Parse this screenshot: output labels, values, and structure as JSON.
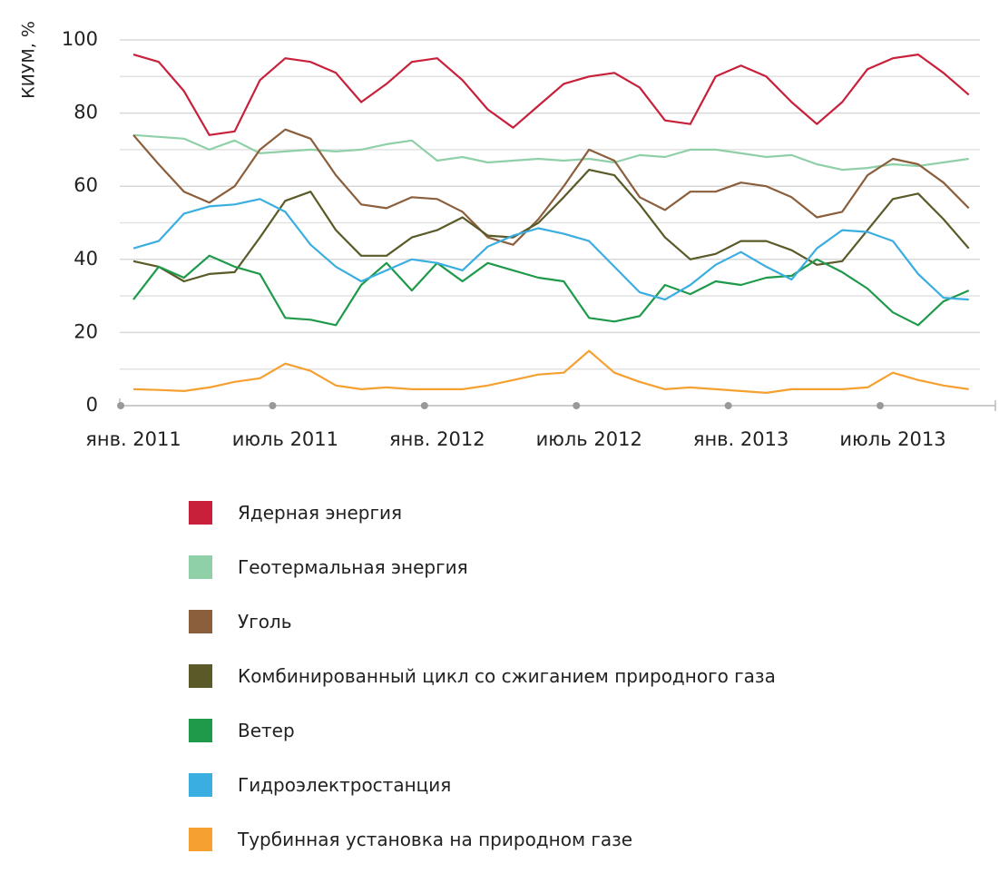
{
  "chart_data": {
    "type": "line",
    "y_label": "КИУМ, %",
    "categories": [
      "янв. 2011",
      null,
      null,
      null,
      null,
      null,
      "июль 2011",
      null,
      null,
      null,
      null,
      null,
      "янв. 2012",
      null,
      null,
      null,
      null,
      null,
      "июль 2012",
      null,
      null,
      null,
      null,
      null,
      "янв. 2013",
      null,
      null,
      null,
      null,
      null,
      "июль 2013",
      null,
      null,
      null
    ],
    "ylim": [
      0,
      100
    ],
    "yticks": [
      0,
      20,
      40,
      60,
      80,
      100
    ],
    "minor_yticks": [
      10,
      30,
      50,
      70,
      90
    ],
    "grid": true,
    "series": [
      {
        "name": "Ядерная энергия",
        "color": "#c8203a",
        "values": [
          96,
          94,
          86,
          74,
          75,
          89,
          95,
          94,
          91,
          83,
          88,
          94,
          95,
          89,
          81,
          76,
          82,
          88,
          90,
          91,
          87,
          78,
          77,
          90,
          93,
          90,
          83,
          77,
          83,
          92,
          95,
          96,
          91,
          85
        ]
      },
      {
        "name": "Геотермальная энергия",
        "color": "#8fd0a8",
        "values": [
          74,
          73.5,
          73,
          70,
          72.5,
          69,
          69.5,
          70,
          69.5,
          70,
          71.5,
          72.5,
          67,
          68,
          66.5,
          67,
          67.5,
          67,
          67.5,
          66.5,
          68.5,
          68,
          70,
          70,
          69,
          68,
          68.5,
          66,
          64.5,
          65,
          66,
          65.5,
          66.5,
          67.5
        ]
      },
      {
        "name": "Уголь",
        "color": "#8b5e3c",
        "values": [
          74,
          66,
          58.5,
          55.5,
          60,
          70,
          75.5,
          73,
          63,
          55,
          54,
          57,
          56.5,
          53,
          46,
          44,
          51,
          60,
          70,
          67,
          57,
          53.5,
          58.5,
          58.5,
          61,
          60,
          57,
          51.5,
          53,
          63,
          67.5,
          66,
          61,
          54
        ]
      },
      {
        "name": "Комбинированный цикл со сжиганием природного газа",
        "color": "#5a5a28",
        "values": [
          39.5,
          38,
          34,
          36,
          36.5,
          46,
          56,
          58.5,
          48,
          41,
          41,
          46,
          48,
          51.5,
          46.5,
          46,
          50,
          57,
          64.5,
          63,
          55,
          46,
          40,
          41.5,
          45,
          45,
          42.5,
          38.5,
          39.5,
          48,
          56.5,
          58,
          51,
          43
        ]
      },
      {
        "name": "Ветер",
        "color": "#1e9a4a",
        "values": [
          29,
          38,
          35,
          41,
          38,
          36,
          24,
          23.5,
          22,
          33,
          39,
          31.5,
          39,
          34,
          39,
          37,
          35,
          34,
          24,
          23,
          24.5,
          33,
          30.5,
          34,
          33,
          35,
          35.5,
          40,
          36.5,
          32,
          25.5,
          22,
          28.5,
          31.5
        ]
      },
      {
        "name": "Гидроэлектростанция",
        "color": "#3aaee0",
        "values": [
          43,
          45,
          52.5,
          54.5,
          55,
          56.5,
          53,
          44,
          38,
          34,
          37,
          40,
          39,
          37,
          43.5,
          46.5,
          48.5,
          47,
          45,
          38,
          31,
          29,
          33,
          38.5,
          42,
          38,
          34.5,
          43,
          48,
          47.5,
          45,
          36,
          29.5,
          29
        ]
      },
      {
        "name": "Турбинная установка на природном газе",
        "color": "#f5a030",
        "values": [
          4.5,
          4.3,
          4,
          5,
          6.5,
          7.5,
          11.5,
          9.5,
          5.5,
          4.5,
          5,
          4.5,
          4.5,
          4.5,
          5.5,
          7,
          8.5,
          9,
          15,
          9,
          6.5,
          4.5,
          5,
          4.5,
          4,
          3.5,
          4.5,
          4.5,
          4.5,
          5,
          9,
          7,
          5.5,
          4.5
        ]
      }
    ]
  }
}
